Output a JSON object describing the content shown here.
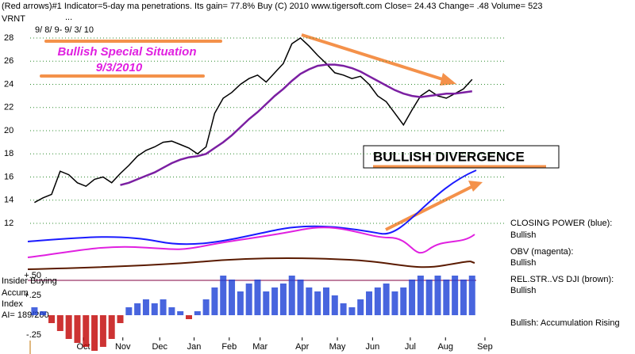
{
  "header": "(Red arrows)#1 Indicator=5-day ma penetrations. Its gain= 77.8% Buy     (C) 2010 www.tigersoft.com     Close=  24.43  Change= .48 Volume= 523",
  "symbol": "VRNT",
  "dots": "...",
  "date_range": "9/ 8/ 9- 9/ 3/ 10",
  "banner": "Bullish Special Situation",
  "banner_date": "9/3/2010",
  "divergence": "BULLISH DIVERGENCE",
  "notes": [
    "CLOSING POWER (blue):",
    "Bullish",
    "OBV (magenta):",
    "Bullish",
    "REL.STR..VS DJI (brown):",
    "Bullish",
    "Bullish: Accumulation Rising"
  ],
  "lower_labels": [
    "Insider Buying",
    "Accum",
    "Index",
    "AI= 189/200"
  ],
  "chart_data": [
    {
      "type": "line",
      "x": [
        0,
        1,
        2,
        3,
        4,
        5,
        6,
        7,
        8,
        9,
        10,
        11,
        12,
        13,
        14,
        15,
        16,
        17,
        18,
        19,
        20,
        21,
        22,
        23,
        24,
        25,
        26,
        27,
        28,
        29,
        30,
        31,
        32,
        33,
        34,
        35,
        36,
        37,
        38,
        39,
        40,
        41,
        42,
        43,
        44,
        45,
        46,
        47,
        48,
        49,
        50,
        51
      ],
      "series": [
        {
          "color": "#000000",
          "values": [
            13.8,
            14.2,
            14.5,
            16.5,
            16.2,
            15.5,
            15.2,
            15.8,
            16.0,
            15.5,
            16.3,
            17.0,
            17.8,
            18.3,
            18.6,
            19.0,
            19.1,
            18.8,
            18.5,
            18.0,
            18.6,
            21.5,
            22.8,
            23.3,
            24.0,
            24.5,
            24.8,
            24.2,
            25.0,
            25.8,
            27.5,
            28.0,
            27.3,
            26.5,
            25.8,
            25.0,
            24.8,
            24.5,
            24.7,
            24.0,
            23.0,
            22.5,
            21.5,
            20.5,
            21.8,
            23.0,
            23.5,
            23.0,
            22.8,
            23.2,
            23.6,
            24.43
          ]
        },
        {
          "color": "#7b1fa2",
          "values": [
            null,
            null,
            null,
            null,
            null,
            null,
            null,
            null,
            null,
            null,
            15.3,
            15.5,
            15.8,
            16.1,
            16.4,
            16.8,
            17.2,
            17.5,
            17.7,
            17.8,
            18.0,
            18.5,
            19.0,
            19.6,
            20.3,
            21.0,
            21.6,
            22.3,
            23.0,
            23.6,
            24.3,
            24.9,
            25.3,
            25.6,
            25.7,
            25.7,
            25.6,
            25.4,
            25.1,
            24.7,
            24.3,
            23.9,
            23.5,
            23.2,
            23.0,
            22.9,
            23.0,
            23.1,
            23.2,
            23.2,
            23.3,
            23.4
          ]
        }
      ],
      "xlim": [
        -0.5,
        55
      ],
      "xticks": [
        {
          "value": 5.7,
          "label": "Oct"
        },
        {
          "value": 10.3,
          "label": "Nov"
        },
        {
          "value": 14.6,
          "label": "Dec"
        },
        {
          "value": 18.6,
          "label": "Jan"
        },
        {
          "value": 22.7,
          "label": "Feb"
        },
        {
          "value": 26.3,
          "label": "Mar"
        },
        {
          "value": 31.2,
          "label": "Apr"
        },
        {
          "value": 35.3,
          "label": "May"
        },
        {
          "value": 39.4,
          "label": "Jun"
        },
        {
          "value": 43.8,
          "label": "Jul"
        },
        {
          "value": 47.9,
          "label": "Aug"
        },
        {
          "value": 52.5,
          "label": "Sep"
        }
      ],
      "ylim": [
        12,
        28
      ],
      "yticks": [
        12,
        14,
        16,
        18,
        20,
        22,
        24,
        26,
        28
      ],
      "grid": true
    },
    {
      "type": "bar",
      "x": [
        0,
        1,
        2,
        3,
        4,
        5,
        6,
        7,
        8,
        9,
        10,
        11,
        12,
        13,
        14,
        15,
        16,
        17,
        18,
        19,
        20,
        21,
        22,
        23,
        24,
        25,
        26,
        27,
        28,
        29,
        30,
        31,
        32,
        33,
        34,
        35,
        36,
        37,
        38,
        39,
        40,
        41,
        42,
        43,
        44,
        45,
        46,
        47,
        48,
        49,
        50,
        51
      ],
      "values": [
        0.1,
        0.05,
        -0.1,
        -0.2,
        -0.3,
        -0.35,
        -0.4,
        -0.45,
        -0.4,
        -0.3,
        -0.1,
        0.1,
        0.15,
        0.2,
        0.15,
        0.2,
        0.1,
        0.05,
        -0.05,
        0.05,
        0.2,
        0.35,
        0.5,
        0.45,
        0.3,
        0.4,
        0.45,
        0.3,
        0.35,
        0.4,
        0.5,
        0.45,
        0.35,
        0.3,
        0.35,
        0.25,
        0.15,
        0.1,
        0.2,
        0.3,
        0.35,
        0.4,
        0.3,
        0.35,
        0.45,
        0.5,
        0.45,
        0.5,
        0.45,
        0.5,
        0.45,
        0.5
      ],
      "color": "#1a3fd6",
      "negative_color": "#c00000",
      "xlim": [
        -0.5,
        55
      ],
      "ylim": [
        -0.45,
        0.55
      ],
      "yticks": [
        {
          "value": 0.5,
          "label": "+.50"
        },
        {
          "value": 0.25,
          "label": "+.25"
        },
        {
          "value": -0.25,
          "label": "-.25"
        }
      ]
    }
  ]
}
